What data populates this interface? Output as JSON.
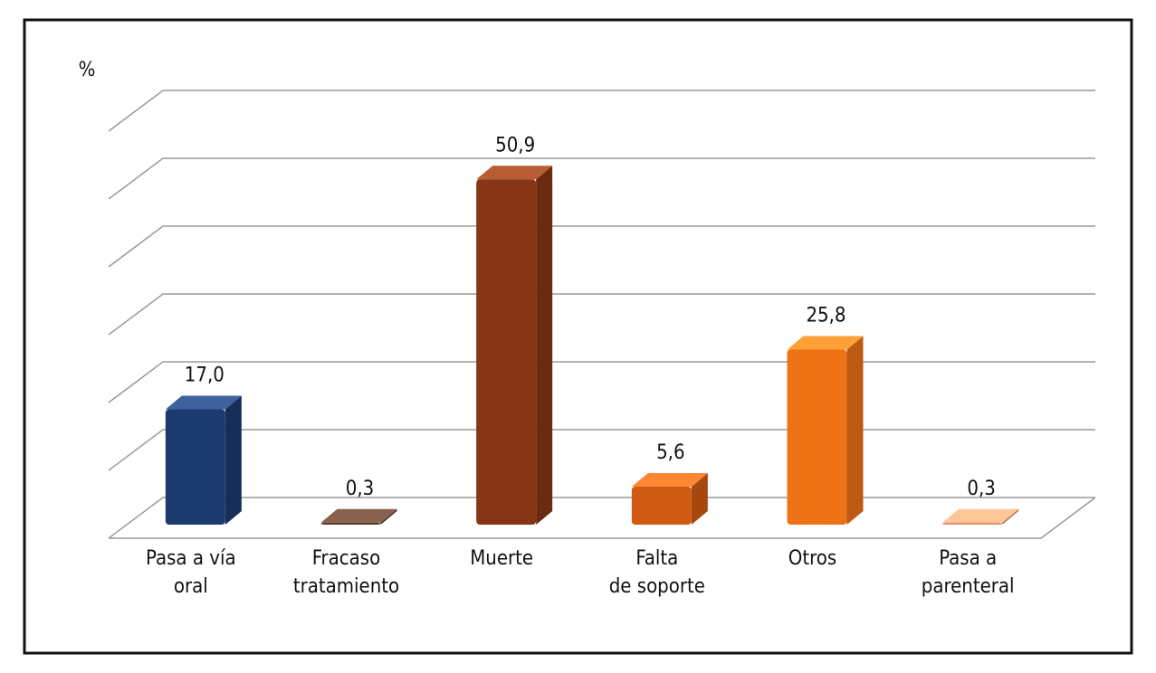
{
  "chart_data": {
    "type": "bar3d",
    "y_label": "%",
    "categories": [
      [
        "Pasa a vía",
        "oral"
      ],
      [
        "Fracaso",
        "tratamiento"
      ],
      [
        "Muerte"
      ],
      [
        "Falta",
        "de soporte"
      ],
      [
        "Otros"
      ],
      [
        "Pasa a",
        "parenteral"
      ]
    ],
    "values": [
      17.0,
      0.3,
      50.9,
      5.6,
      25.8,
      0.3
    ],
    "value_labels": [
      "17,0",
      "0,3",
      "50,9",
      "5,6",
      "25,8",
      "0,3"
    ],
    "colors": [
      "#1d3a6e",
      "#5c3b2b",
      "#863614",
      "#cf5a12",
      "#ee7216",
      "#e8926a"
    ],
    "ylim": [
      0,
      60
    ],
    "yticks": [
      0,
      10,
      20,
      30,
      40,
      50,
      60
    ],
    "grid": true
  }
}
